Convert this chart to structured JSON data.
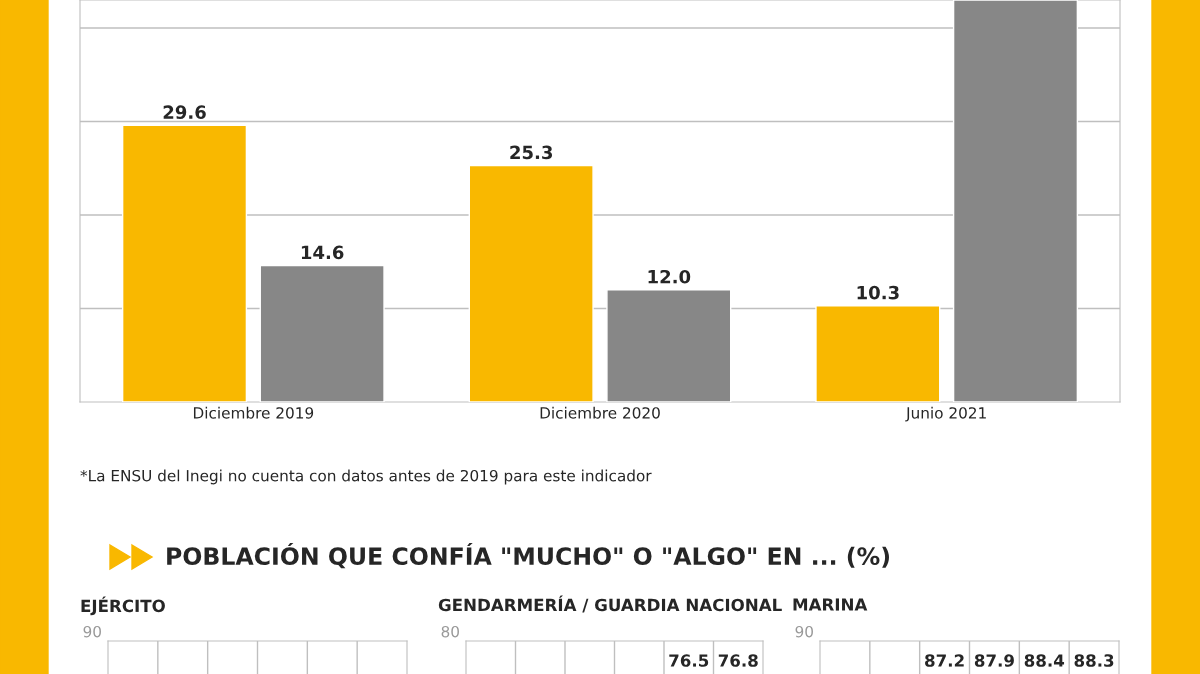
{
  "chart_data": [
    {
      "type": "bar",
      "categories": [
        "Diciembre 2019",
        "Diciembre 2020",
        "Junio 2021"
      ],
      "series": [
        {
          "color": "#f9b800",
          "values": [
            29.6,
            25.3,
            10.3
          ],
          "value_labels": [
            "29.6",
            "25.3",
            "10.3"
          ]
        },
        {
          "color": "#878787",
          "values": [
            14.6,
            12.0,
            43
          ],
          "value_labels": [
            "14.6",
            "12.0",
            null
          ]
        }
      ],
      "ylim": [
        0,
        43
      ],
      "yticks": [
        {
          "value": 10,
          "label": null
        },
        {
          "value": 20,
          "label": null
        },
        {
          "value": 30,
          "label": null
        },
        {
          "value": 40,
          "label": null
        }
      ],
      "grid": "y",
      "annotations": [
        "*La ENSU del Inegi no cuenta con datos antes de 2019 para este indicador"
      ]
    },
    {
      "type": "other",
      "title": "POBLACIÓN QUE CONFÍA \"MUCHO\" O \"ALGO\" EN ... (%)",
      "subtitle": "EJÉRCITO",
      "categories": [
        null,
        null,
        null,
        null,
        null,
        null
      ],
      "annotations": [
        "90"
      ]
    },
    {
      "type": "other",
      "title": "GENDARMERÍA / GUARDIA NACIONAL",
      "categories": [
        null,
        null,
        null,
        null,
        null,
        null
      ],
      "annotations": [
        "80",
        "76.5",
        "76.8"
      ]
    },
    {
      "type": "other",
      "title": "MARINA",
      "categories": [
        null,
        null,
        null,
        null,
        null,
        null
      ],
      "annotations": [
        "90",
        "87.2",
        "87.9",
        "88.4",
        "88.3"
      ]
    }
  ]
}
